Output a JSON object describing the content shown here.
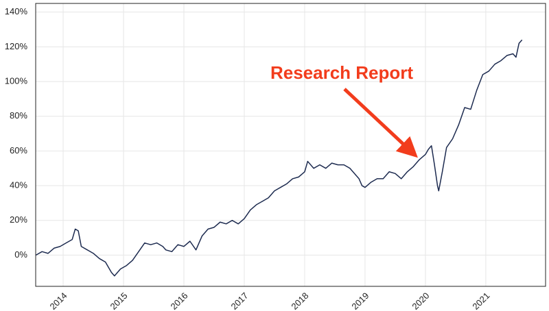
{
  "chart_data": {
    "type": "line",
    "annotation": "Research Report",
    "color": "#1c2a4f",
    "grid": true,
    "x": [
      2013.55,
      2013.65,
      2013.75,
      2013.85,
      2013.95,
      2014.05,
      2014.15,
      2014.2,
      2014.25,
      2014.3,
      2014.4,
      2014.5,
      2014.6,
      2014.7,
      2014.8,
      2014.85,
      2014.95,
      2015.05,
      2015.15,
      2015.25,
      2015.35,
      2015.45,
      2015.55,
      2015.65,
      2015.7,
      2015.8,
      2015.9,
      2016.0,
      2016.1,
      2016.2,
      2016.3,
      2016.4,
      2016.5,
      2016.6,
      2016.7,
      2016.8,
      2016.9,
      2017.0,
      2017.1,
      2017.2,
      2017.3,
      2017.4,
      2017.5,
      2017.6,
      2017.7,
      2017.8,
      2017.9,
      2018.0,
      2018.05,
      2018.15,
      2018.25,
      2018.35,
      2018.45,
      2018.55,
      2018.65,
      2018.75,
      2018.85,
      2018.9,
      2018.95,
      2019.0,
      2019.1,
      2019.2,
      2019.3,
      2019.4,
      2019.5,
      2019.6,
      2019.7,
      2019.8,
      2019.9,
      2020.0,
      2020.05,
      2020.1,
      2020.15,
      2020.2,
      2020.22,
      2020.28,
      2020.35,
      2020.45,
      2020.55,
      2020.65,
      2020.75,
      2020.85,
      2020.95,
      2021.05,
      2021.15,
      2021.25,
      2021.35,
      2021.45,
      2021.5,
      2021.55,
      2021.6
    ],
    "values": [
      0,
      2,
      1,
      4,
      5,
      7,
      9,
      15,
      14,
      5,
      3,
      1,
      -2,
      -4,
      -10,
      -12,
      -8,
      -6,
      -3,
      2,
      7,
      6,
      7,
      5,
      3,
      2,
      6,
      5,
      8,
      3,
      11,
      15,
      16,
      19,
      18,
      20,
      18,
      21,
      26,
      29,
      31,
      33,
      37,
      39,
      41,
      44,
      45,
      48,
      54,
      50,
      52,
      50,
      53,
      52,
      52,
      50,
      46,
      44,
      40,
      39,
      42,
      44,
      44,
      48,
      47,
      44,
      48,
      51,
      55,
      58,
      61,
      63,
      52,
      40,
      37,
      48,
      62,
      67,
      75,
      85,
      84,
      95,
      104,
      106,
      110,
      112,
      115,
      116,
      114,
      122,
      124
    ],
    "xlim": [
      2013.545,
      2021.99
    ],
    "xticks": [
      2014,
      2015,
      2016,
      2017,
      2018,
      2019,
      2020,
      2021
    ],
    "ylim": [
      -18,
      145
    ],
    "yticks": [
      {
        "value": 0,
        "label": "0%"
      },
      {
        "value": 20,
        "label": "20%"
      },
      {
        "value": 40,
        "label": "40%"
      },
      {
        "value": 60,
        "label": "60%"
      },
      {
        "value": 80,
        "label": "80%"
      },
      {
        "value": 100,
        "label": "100%"
      },
      {
        "value": 120,
        "label": "120%"
      },
      {
        "value": 140,
        "label": "140%"
      }
    ]
  }
}
